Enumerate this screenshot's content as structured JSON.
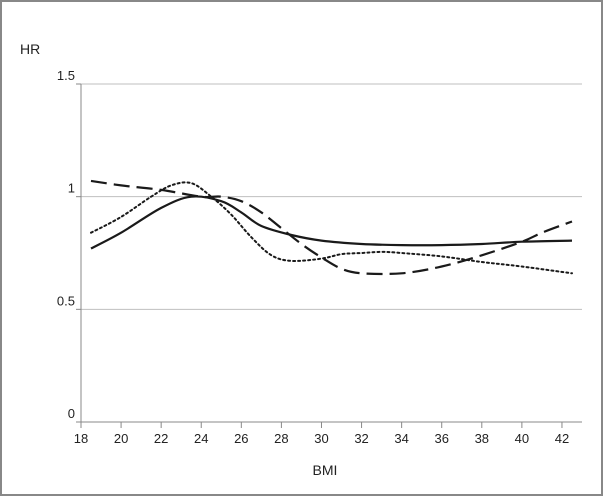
{
  "chart_data": {
    "type": "line",
    "title": "",
    "xlabel": "BMI",
    "ylabel": "HR",
    "xlim": [
      18,
      43
    ],
    "ylim": [
      0,
      1.5
    ],
    "x_ticks": [
      18,
      20,
      22,
      24,
      26,
      28,
      30,
      32,
      34,
      36,
      38,
      40,
      42
    ],
    "x_tick_labels": [
      "18",
      "20",
      "22",
      "24",
      "26",
      "28",
      "30",
      "32",
      "34",
      "36",
      "38",
      "40",
      "42"
    ],
    "y_ticks": [
      0,
      0.5,
      1,
      1.5
    ],
    "y_tick_labels": [
      "0",
      "0.5",
      "1",
      "1.5"
    ],
    "grid": "horizontal",
    "legend": "none",
    "series": [
      {
        "style": "solid",
        "color": "#1a1a1a",
        "points": [
          [
            18.5,
            0.77
          ],
          [
            20,
            0.84
          ],
          [
            22,
            0.95
          ],
          [
            23.5,
            1.0
          ],
          [
            25,
            0.98
          ],
          [
            26,
            0.93
          ],
          [
            27,
            0.87
          ],
          [
            28.5,
            0.83
          ],
          [
            30,
            0.805
          ],
          [
            32,
            0.79
          ],
          [
            34,
            0.785
          ],
          [
            36,
            0.785
          ],
          [
            38,
            0.79
          ],
          [
            40,
            0.8
          ],
          [
            42.5,
            0.805
          ]
        ]
      },
      {
        "style": "dashed",
        "color": "#1a1a1a",
        "points": [
          [
            18.5,
            1.07
          ],
          [
            20,
            1.05
          ],
          [
            22,
            1.03
          ],
          [
            24,
            1.0
          ],
          [
            25,
            1.0
          ],
          [
            26,
            0.98
          ],
          [
            27,
            0.93
          ],
          [
            28,
            0.86
          ],
          [
            29,
            0.79
          ],
          [
            30,
            0.73
          ],
          [
            31,
            0.68
          ],
          [
            32,
            0.66
          ],
          [
            34,
            0.66
          ],
          [
            36,
            0.69
          ],
          [
            38,
            0.74
          ],
          [
            40,
            0.8
          ],
          [
            41,
            0.84
          ],
          [
            42.5,
            0.89
          ]
        ]
      },
      {
        "style": "dotted",
        "color": "#1a1a1a",
        "points": [
          [
            18.5,
            0.84
          ],
          [
            20,
            0.91
          ],
          [
            21.5,
            1.0
          ],
          [
            22.5,
            1.05
          ],
          [
            23.5,
            1.06
          ],
          [
            24.5,
            1.0
          ],
          [
            25.5,
            0.92
          ],
          [
            26.5,
            0.82
          ],
          [
            27.5,
            0.74
          ],
          [
            28.5,
            0.715
          ],
          [
            30,
            0.725
          ],
          [
            31,
            0.745
          ],
          [
            32,
            0.75
          ],
          [
            33,
            0.755
          ],
          [
            34,
            0.75
          ],
          [
            36,
            0.735
          ],
          [
            38,
            0.71
          ],
          [
            40,
            0.69
          ],
          [
            42.5,
            0.66
          ]
        ]
      }
    ]
  }
}
